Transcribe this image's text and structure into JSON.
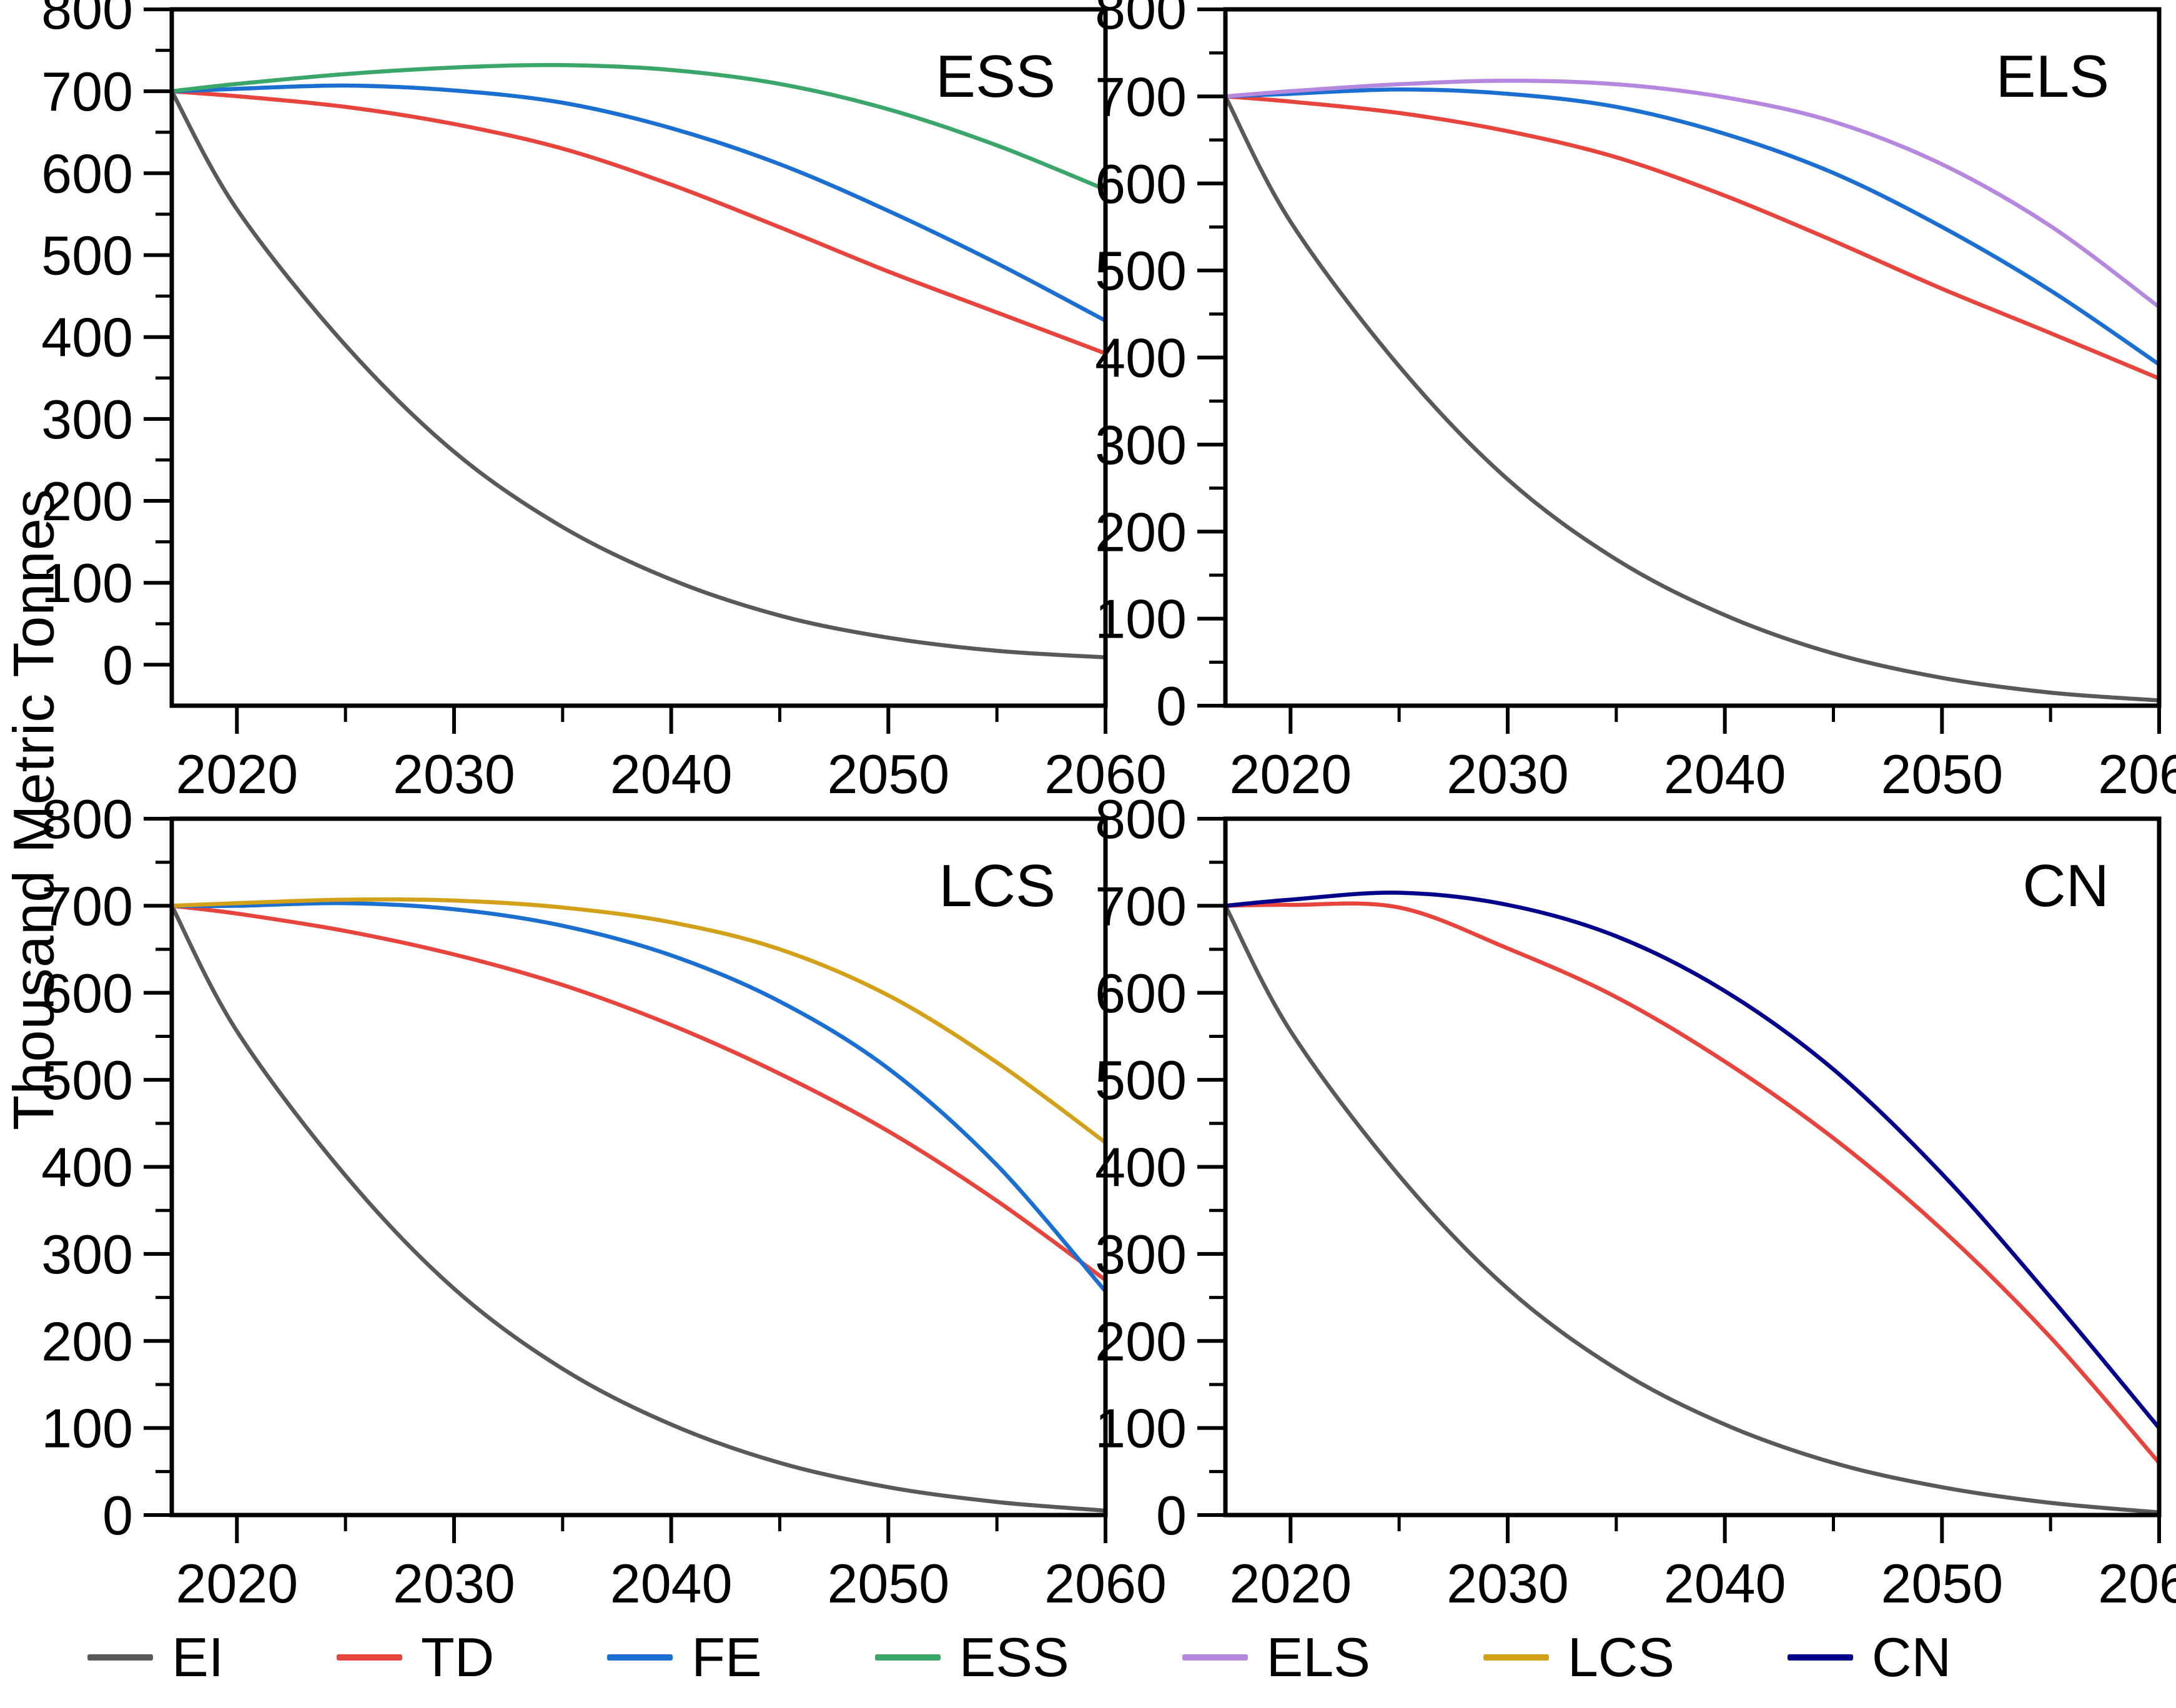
{
  "figure": {
    "y_axis_title": "Thousand Metric Tonnes",
    "background": "#ffffff",
    "axis_color": "#000000",
    "text_color": "#000000"
  },
  "legend": {
    "entries": [
      {
        "label": "EI",
        "color": "#595959"
      },
      {
        "label": "TD",
        "color": "#E8443E"
      },
      {
        "label": "FE",
        "color": "#1B6FD0"
      },
      {
        "label": "ESS",
        "color": "#3BA669"
      },
      {
        "label": "ELS",
        "color": "#B687DE"
      },
      {
        "label": "LCS",
        "color": "#D2A019"
      },
      {
        "label": "CN",
        "color": "#00008B"
      }
    ]
  },
  "chart_data": [
    {
      "type": "line",
      "panel_label": "ESS",
      "x": [
        2017,
        2020,
        2025,
        2030,
        2035,
        2040,
        2045,
        2050,
        2055,
        2060
      ],
      "xlim": [
        2017,
        2060
      ],
      "ylim": [
        -50,
        800
      ],
      "x_major_ticks": [
        2020,
        2030,
        2040,
        2050,
        2060
      ],
      "x_minor_ticks": [
        2025,
        2035,
        2045,
        2055
      ],
      "y_major_ticks": [
        0,
        100,
        200,
        300,
        400,
        500,
        600,
        700,
        800
      ],
      "y_minor_ticks": [
        50,
        150,
        250,
        350,
        450,
        550,
        650,
        750
      ],
      "series": [
        {
          "name": "EI",
          "color": "#595959",
          "values": [
            700,
            556,
            390,
            260,
            168,
            104,
            60,
            33,
            17,
            9
          ]
        },
        {
          "name": "TD",
          "color": "#E8443E",
          "values": [
            700,
            694,
            681,
            660,
            630,
            586,
            534,
            480,
            430,
            380
          ]
        },
        {
          "name": "FE",
          "color": "#1B6FD0",
          "values": [
            700,
            703,
            707,
            701,
            686,
            655,
            611,
            554,
            490,
            420
          ]
        },
        {
          "name": "ESS",
          "color": "#3BA669",
          "values": [
            700,
            709,
            721,
            729,
            732,
            726,
            709,
            678,
            634,
            580
          ]
        }
      ]
    },
    {
      "type": "line",
      "panel_label": "ELS",
      "x": [
        2017,
        2020,
        2025,
        2030,
        2035,
        2040,
        2045,
        2050,
        2055,
        2060
      ],
      "xlim": [
        2017,
        2060
      ],
      "ylim": [
        0,
        800
      ],
      "x_major_ticks": [
        2020,
        2030,
        2040,
        2050,
        2060
      ],
      "x_minor_ticks": [
        2025,
        2035,
        2045,
        2055
      ],
      "y_major_ticks": [
        0,
        100,
        200,
        300,
        400,
        500,
        600,
        700,
        800
      ],
      "y_minor_ticks": [
        50,
        150,
        250,
        350,
        450,
        550,
        650,
        750
      ],
      "series": [
        {
          "name": "EI",
          "color": "#595959",
          "values": [
            700,
            556,
            390,
            260,
            168,
            104,
            60,
            32,
            15,
            6
          ]
        },
        {
          "name": "TD",
          "color": "#E8443E",
          "values": [
            700,
            694,
            681,
            660,
            630,
            586,
            534,
            479,
            428,
            376
          ]
        },
        {
          "name": "FE",
          "color": "#1B6FD0",
          "values": [
            700,
            703,
            708,
            703,
            688,
            657,
            612,
            550,
            477,
            392
          ]
        },
        {
          "name": "ELS",
          "color": "#B687DE",
          "values": [
            700,
            706,
            714,
            718,
            714,
            699,
            671,
            622,
            551,
            458
          ]
        }
      ]
    },
    {
      "type": "line",
      "panel_label": "LCS",
      "x": [
        2017,
        2020,
        2025,
        2030,
        2035,
        2040,
        2045,
        2050,
        2055,
        2060
      ],
      "xlim": [
        2017,
        2060
      ],
      "ylim": [
        0,
        800
      ],
      "x_major_ticks": [
        2020,
        2030,
        2040,
        2050,
        2060
      ],
      "x_minor_ticks": [
        2025,
        2035,
        2045,
        2055
      ],
      "y_major_ticks": [
        0,
        100,
        200,
        300,
        400,
        500,
        600,
        700,
        800
      ],
      "y_minor_ticks": [
        50,
        150,
        250,
        350,
        450,
        550,
        650,
        750
      ],
      "series": [
        {
          "name": "EI",
          "color": "#595959",
          "values": [
            700,
            556,
            390,
            260,
            168,
            104,
            60,
            32,
            15,
            5
          ]
        },
        {
          "name": "TD",
          "color": "#E8443E",
          "values": [
            700,
            691,
            671,
            644,
            609,
            563,
            507,
            441,
            361,
            270
          ]
        },
        {
          "name": "FE",
          "color": "#1B6FD0",
          "values": [
            700,
            700,
            703,
            696,
            677,
            643,
            590,
            513,
            402,
            257
          ]
        },
        {
          "name": "LCS",
          "color": "#D2A019",
          "values": [
            700,
            703,
            707,
            706,
            698,
            681,
            650,
            597,
            520,
            428
          ]
        }
      ]
    },
    {
      "type": "line",
      "panel_label": "CN",
      "x": [
        2017,
        2020,
        2025,
        2030,
        2035,
        2040,
        2045,
        2050,
        2055,
        2060
      ],
      "xlim": [
        2017,
        2060
      ],
      "ylim": [
        0,
        800
      ],
      "x_major_ticks": [
        2020,
        2030,
        2040,
        2050,
        2060
      ],
      "x_minor_ticks": [
        2025,
        2035,
        2045,
        2055
      ],
      "y_major_ticks": [
        0,
        100,
        200,
        300,
        400,
        500,
        600,
        700,
        800
      ],
      "y_minor_ticks": [
        50,
        150,
        250,
        350,
        450,
        550,
        650,
        750
      ],
      "series": [
        {
          "name": "EI",
          "color": "#595959",
          "values": [
            700,
            556,
            390,
            260,
            168,
            104,
            60,
            32,
            14,
            3
          ]
        },
        {
          "name": "TD",
          "color": "#E8443E",
          "values": [
            700,
            701,
            698,
            651,
            595,
            521,
            433,
            328,
            204,
            60
          ]
        },
        {
          "name": "CN",
          "color": "#00008B",
          "values": [
            700,
            707,
            715,
            701,
            665,
            602,
            512,
            392,
            250,
            100
          ]
        }
      ]
    }
  ]
}
